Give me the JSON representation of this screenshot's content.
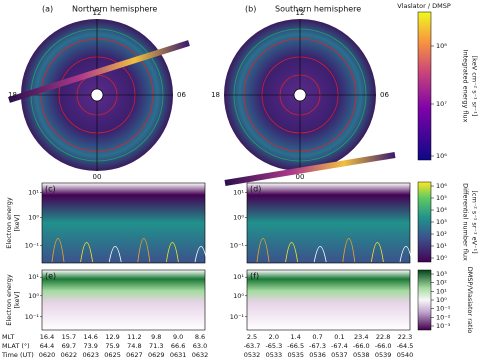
{
  "panels": [
    {
      "label": "(a)",
      "title": "Northern hemisphere",
      "clock": {
        "top": "12",
        "left": "18",
        "right": "06",
        "bottom": "00"
      }
    },
    {
      "label": "(b)",
      "title": "Southern hemisphere",
      "clock": {
        "top": "12",
        "left": "18",
        "right": "06",
        "bottom": "00"
      }
    }
  ],
  "colorbar_flux": {
    "title": "Vlaslator / DMSP",
    "label": [
      "Integrated energy flux",
      "[keV cm⁻² s⁻¹ sr⁻¹]"
    ],
    "ticks": [
      "10⁸",
      "10⁷",
      "10⁶"
    ]
  },
  "spectrograms": [
    "(c)",
    "(d)"
  ],
  "ratios": [
    "(e)",
    "(f)"
  ],
  "y_axis": {
    "label": [
      "Electron energy",
      "[keV]"
    ],
    "ticks": [
      "10¹",
      "10⁰",
      "10⁻¹"
    ]
  },
  "colorbar_diff": {
    "label": [
      "Differential number flux",
      "[cm⁻² s⁻¹ sr⁻¹ eV⁻¹]"
    ],
    "ticks": [
      "10⁶",
      "10⁵",
      "10⁴",
      "10³",
      "10²",
      "10¹",
      "10⁰"
    ]
  },
  "colorbar_ratio": {
    "label": "DMSP/Vlasiator ratio",
    "ticks": [
      "10³",
      "10²",
      "10¹",
      "10⁰",
      "10⁻¹",
      "10⁻²",
      "10⁻³"
    ]
  },
  "ephemeris": {
    "row_labels": [
      "MLT",
      "MLAT (°)",
      "Time (UT)"
    ],
    "left": [
      [
        "16.4",
        "15.7",
        "14.6",
        "12.9",
        "11.2",
        "9.8",
        "9.0",
        "8.6"
      ],
      [
        "64.4",
        "69.7",
        "73.9",
        "75.9",
        "74.8",
        "71.3",
        "66.6",
        "63.0"
      ],
      [
        "0620",
        "0622",
        "0623",
        "0625",
        "0627",
        "0629",
        "0631",
        "0632"
      ]
    ],
    "right": [
      [
        "2.5",
        "2.0",
        "1.4",
        "0.7",
        "0.1",
        "23.4",
        "22.8",
        "22.3"
      ],
      [
        "-63.7",
        "-65.3",
        "-66.5",
        "-67.3",
        "-67.4",
        "-66.0",
        "-66.0",
        "-64.5"
      ],
      [
        "0532",
        "0533",
        "0535",
        "0536",
        "0537",
        "0538",
        "0539",
        "0540"
      ]
    ]
  }
}
